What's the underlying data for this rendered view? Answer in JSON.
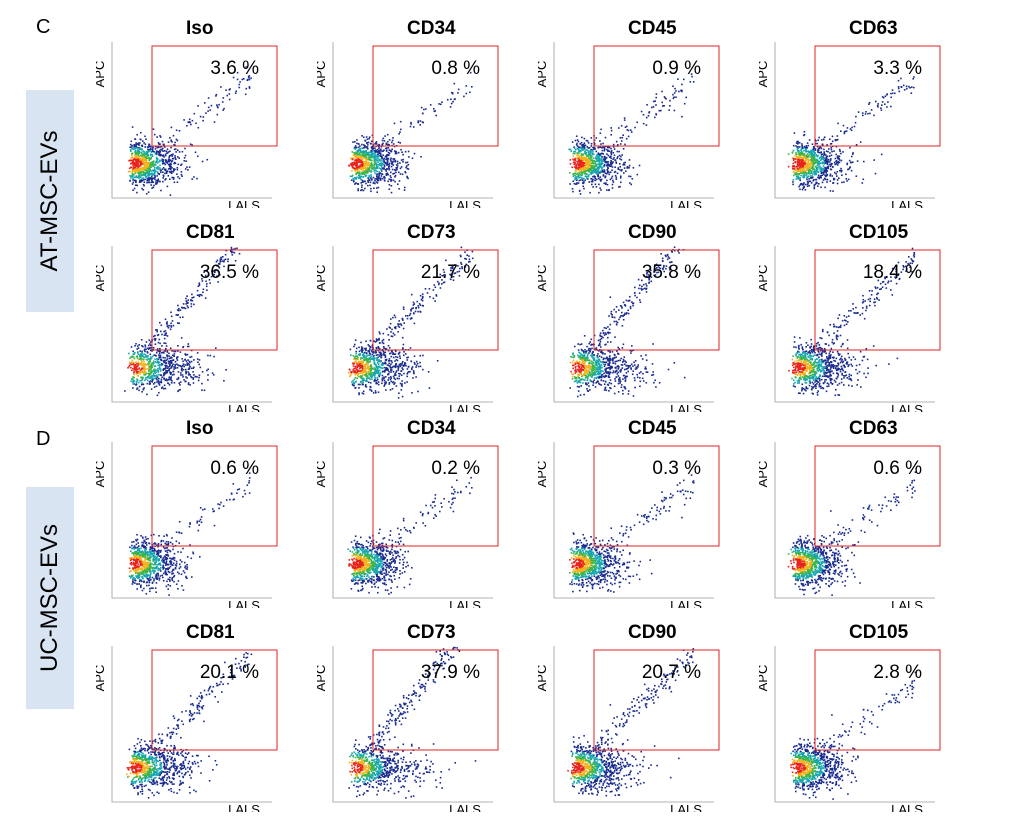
{
  "figure": {
    "sections": [
      {
        "id": "C",
        "letter": "C",
        "group_label": "AT-MSC-EVs",
        "rows": [
          [
            {
              "marker": "Iso",
              "percent": "3.6 %"
            },
            {
              "marker": "CD34",
              "percent": "0.8 %"
            },
            {
              "marker": "CD45",
              "percent": "0.9 %"
            },
            {
              "marker": "CD63",
              "percent": "3.3 %"
            }
          ],
          [
            {
              "marker": "CD81",
              "percent": "36.5 %"
            },
            {
              "marker": "CD73",
              "percent": "21.7 %"
            },
            {
              "marker": "CD90",
              "percent": "35.8 %"
            },
            {
              "marker": "CD105",
              "percent": "18.4 %"
            }
          ]
        ]
      },
      {
        "id": "D",
        "letter": "D",
        "group_label": "UC-MSC-EVs",
        "rows": [
          [
            {
              "marker": "Iso",
              "percent": "0.6 %"
            },
            {
              "marker": "CD34",
              "percent": "0.2 %"
            },
            {
              "marker": "CD45",
              "percent": "0.3 %"
            },
            {
              "marker": "CD63",
              "percent": "0.6 %"
            }
          ],
          [
            {
              "marker": "CD81",
              "percent": "20.1 %"
            },
            {
              "marker": "CD73",
              "percent": "37.9 %"
            },
            {
              "marker": "CD90",
              "percent": "20.7 %"
            },
            {
              "marker": "CD105",
              "percent": "2.8 %"
            }
          ]
        ]
      }
    ],
    "axis_labels": {
      "y": "APC",
      "x": "LALS"
    },
    "colors": {
      "gate": "#e02020",
      "group_box": "#d9e4f3",
      "axis": "#9a9a9a"
    }
  },
  "chart_data": {
    "type": "scatter",
    "title": "",
    "xlabel": "LALS",
    "ylabel": "APC",
    "panels": [
      {
        "group": "AT-MSC-EVs",
        "marker": "Iso",
        "gated_percent": 3.6
      },
      {
        "group": "AT-MSC-EVs",
        "marker": "CD34",
        "gated_percent": 0.8
      },
      {
        "group": "AT-MSC-EVs",
        "marker": "CD45",
        "gated_percent": 0.9
      },
      {
        "group": "AT-MSC-EVs",
        "marker": "CD63",
        "gated_percent": 3.3
      },
      {
        "group": "AT-MSC-EVs",
        "marker": "CD81",
        "gated_percent": 36.5
      },
      {
        "group": "AT-MSC-EVs",
        "marker": "CD73",
        "gated_percent": 21.7
      },
      {
        "group": "AT-MSC-EVs",
        "marker": "CD90",
        "gated_percent": 35.8
      },
      {
        "group": "AT-MSC-EVs",
        "marker": "CD105",
        "gated_percent": 18.4
      },
      {
        "group": "UC-MSC-EVs",
        "marker": "Iso",
        "gated_percent": 0.6
      },
      {
        "group": "UC-MSC-EVs",
        "marker": "CD34",
        "gated_percent": 0.2
      },
      {
        "group": "UC-MSC-EVs",
        "marker": "CD45",
        "gated_percent": 0.3
      },
      {
        "group": "UC-MSC-EVs",
        "marker": "CD63",
        "gated_percent": 0.6
      },
      {
        "group": "UC-MSC-EVs",
        "marker": "CD81",
        "gated_percent": 20.1
      },
      {
        "group": "UC-MSC-EVs",
        "marker": "CD73",
        "gated_percent": 37.9
      },
      {
        "group": "UC-MSC-EVs",
        "marker": "CD90",
        "gated_percent": 20.7
      },
      {
        "group": "UC-MSC-EVs",
        "marker": "CD105",
        "gated_percent": 2.8
      }
    ]
  }
}
